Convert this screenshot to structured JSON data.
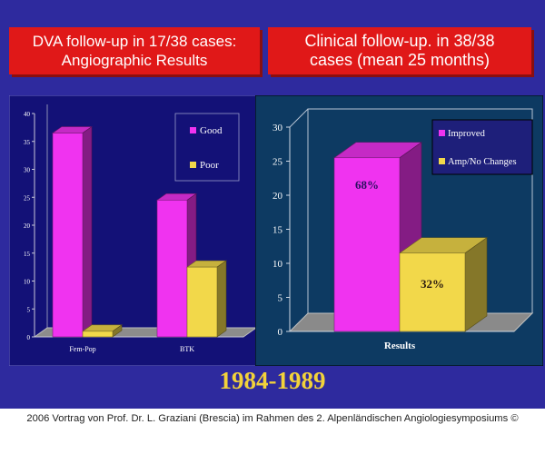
{
  "slide": {
    "title_left": {
      "line1": "DVA follow-up in 17/38 cases:",
      "line2": "Angiographic Results"
    },
    "title_right": {
      "line1": "Clinical follow-up. in 38/38",
      "line2": "cases (mean 25 months)"
    },
    "years": "1984-1989",
    "footer": "2006 Vortrag von Prof. Dr. L. Graziani (Brescia) im Rahmen des 2. Alpenländischen Angiologiesymposiums ©"
  },
  "colors": {
    "slide_bg": "#2e2a9e",
    "title_bg": "#e01818",
    "good": "#f033f0",
    "poor": "#f2d84a",
    "left_plot_bg": "#131177",
    "right_plot_bg": "#0d3a62"
  },
  "chart_data": [
    {
      "type": "bar",
      "title": "DVA follow-up in 17/38 cases: Angiographic Results",
      "categories": [
        "Fem-Pop",
        "BTK"
      ],
      "series": [
        {
          "name": "Good",
          "values": [
            36.5,
            24.5
          ]
        },
        {
          "name": "Poor",
          "values": [
            1,
            12.5
          ]
        }
      ],
      "ylim": [
        0,
        40
      ],
      "yticks": [
        0,
        5,
        10,
        15,
        20,
        25,
        30,
        35,
        40
      ],
      "xlabel": "",
      "ylabel": "",
      "legend": "top-right",
      "style": "3d"
    },
    {
      "type": "bar",
      "title": "Clinical follow-up. in 38/38 cases (mean 25 months)",
      "categories": [
        "Results"
      ],
      "series": [
        {
          "name": "Improved",
          "values": [
            25.5
          ],
          "label": "68%"
        },
        {
          "name": "Amp/No Changes",
          "values": [
            11.5
          ],
          "label": "32%"
        }
      ],
      "ylim": [
        0,
        30
      ],
      "yticks": [
        0,
        5,
        10,
        15,
        20,
        25,
        30
      ],
      "xlabel": "",
      "ylabel": "",
      "legend": "top-right",
      "style": "3d"
    }
  ]
}
